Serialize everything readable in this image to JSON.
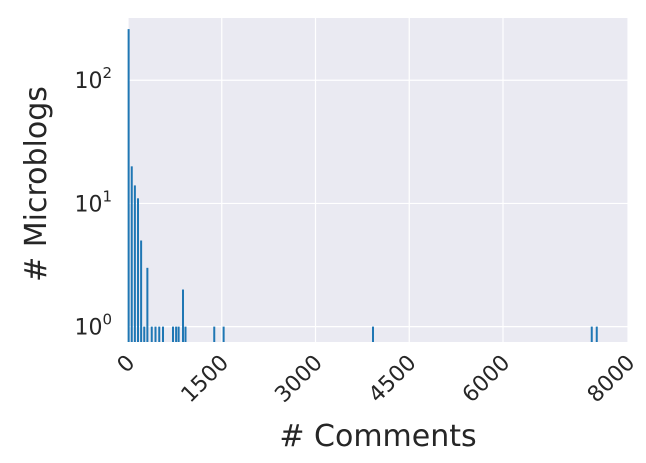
{
  "chart_data": {
    "type": "bar",
    "xlabel": "# Comments",
    "ylabel": "# Microblogs",
    "y_scale": "log",
    "xlim": [
      0,
      8000
    ],
    "ylim": [
      0.75,
      320
    ],
    "x_ticks": [
      0,
      1500,
      3000,
      4500,
      6000,
      8000
    ],
    "x_tick_labels": [
      "0",
      "1500",
      "3000",
      "4500",
      "6000",
      "8000"
    ],
    "y_ticks": [
      1,
      10,
      100
    ],
    "y_tick_labels": [
      "10",
      "10",
      "10"
    ],
    "y_tick_exponents": [
      "0",
      "1",
      "2"
    ],
    "grid": true,
    "legend": "none",
    "bar_color": "#1f77b4",
    "plot_background": "#eaeaf2",
    "bars": [
      {
        "x": 10,
        "y": 260
      },
      {
        "x": 60,
        "y": 20
      },
      {
        "x": 110,
        "y": 14
      },
      {
        "x": 160,
        "y": 11
      },
      {
        "x": 210,
        "y": 5
      },
      {
        "x": 260,
        "y": 1
      },
      {
        "x": 310,
        "y": 3
      },
      {
        "x": 380,
        "y": 1
      },
      {
        "x": 440,
        "y": 1
      },
      {
        "x": 500,
        "y": 1
      },
      {
        "x": 560,
        "y": 1
      },
      {
        "x": 720,
        "y": 1
      },
      {
        "x": 770,
        "y": 1
      },
      {
        "x": 810,
        "y": 1
      },
      {
        "x": 880,
        "y": 2
      },
      {
        "x": 920,
        "y": 1
      },
      {
        "x": 1380,
        "y": 1
      },
      {
        "x": 1530,
        "y": 1
      },
      {
        "x": 3920,
        "y": 1
      },
      {
        "x": 7420,
        "y": 1
      },
      {
        "x": 7500,
        "y": 1
      }
    ]
  }
}
